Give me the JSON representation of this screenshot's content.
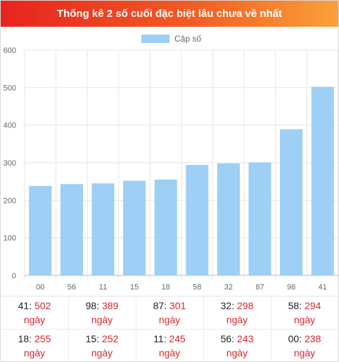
{
  "header": {
    "title": "Thống kê 2 số cuối đặc biệt lâu chưa về nhất"
  },
  "colors": {
    "bar": "#9ecff5",
    "grid": "#e6e6e6",
    "accent_red": "#d9262c"
  },
  "chart_data": {
    "type": "bar",
    "title": "",
    "xlabel": "",
    "ylabel": "",
    "legend": {
      "label": "Cặp số",
      "placement": "top-center"
    },
    "categories": [
      "00",
      "56",
      "11",
      "15",
      "18",
      "58",
      "32",
      "87",
      "98",
      "41"
    ],
    "values": [
      238,
      243,
      245,
      252,
      255,
      294,
      298,
      301,
      389,
      502
    ],
    "ylim": [
      0,
      600
    ],
    "yticks": [
      "0",
      "100",
      "200",
      "300",
      "400",
      "500",
      "600"
    ],
    "grid": true
  },
  "stats": [
    {
      "num": "41",
      "value": "502",
      "unit": "ngày"
    },
    {
      "num": "98",
      "value": "389",
      "unit": "ngày"
    },
    {
      "num": "87",
      "value": "301",
      "unit": "ngày"
    },
    {
      "num": "32",
      "value": "298",
      "unit": "ngày"
    },
    {
      "num": "58",
      "value": "294",
      "unit": "ngày"
    },
    {
      "num": "18",
      "value": "255",
      "unit": "ngày"
    },
    {
      "num": "15",
      "value": "252",
      "unit": "ngày"
    },
    {
      "num": "11",
      "value": "245",
      "unit": "ngày"
    },
    {
      "num": "56",
      "value": "243",
      "unit": "ngày"
    },
    {
      "num": "00",
      "value": "238",
      "unit": "ngày"
    }
  ]
}
